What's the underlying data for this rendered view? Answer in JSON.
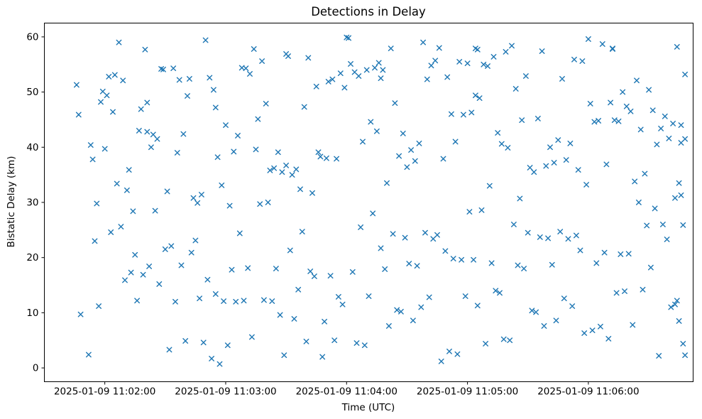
{
  "chart_data": {
    "type": "scatter",
    "title": "Detections in Delay",
    "xlabel": "Time (UTC)",
    "ylabel": "Bistatic Delay (km)",
    "marker": "x",
    "marker_color": "#1f77b4",
    "x_unit": "seconds relative to 2025-01-09 11:02:00 UTC",
    "xlim": [
      -30,
      292
    ],
    "ylim": [
      -2.5,
      62.5
    ],
    "x_ticks": [
      {
        "value": 0,
        "label": "2025-01-09 11:02:00"
      },
      {
        "value": 60,
        "label": "2025-01-09 11:03:00"
      },
      {
        "value": 120,
        "label": "2025-01-09 11:04:00"
      },
      {
        "value": 180,
        "label": "2025-01-09 11:05:00"
      },
      {
        "value": 240,
        "label": "2025-01-09 11:06:00"
      }
    ],
    "y_ticks": [
      0,
      10,
      20,
      30,
      40,
      50,
      60
    ],
    "points": [
      [
        -14,
        51.3
      ],
      [
        -13,
        45.9
      ],
      [
        -12,
        9.7
      ],
      [
        -8,
        2.4
      ],
      [
        -7,
        40.4
      ],
      [
        -6,
        37.8
      ],
      [
        -5,
        23.0
      ],
      [
        -4,
        29.8
      ],
      [
        -3,
        11.2
      ],
      [
        -2,
        48.2
      ],
      [
        -1,
        50.1
      ],
      [
        0,
        39.7
      ],
      [
        1,
        49.4
      ],
      [
        2,
        52.8
      ],
      [
        3,
        24.6
      ],
      [
        4,
        46.4
      ],
      [
        5,
        53.1
      ],
      [
        6,
        33.4
      ],
      [
        7,
        59.0
      ],
      [
        8,
        25.6
      ],
      [
        9,
        52.1
      ],
      [
        10,
        15.9
      ],
      [
        11,
        32.2
      ],
      [
        12,
        35.9
      ],
      [
        13,
        17.3
      ],
      [
        14,
        28.4
      ],
      [
        15,
        20.5
      ],
      [
        16,
        12.2
      ],
      [
        17,
        43.0
      ],
      [
        18,
        46.9
      ],
      [
        19,
        16.9
      ],
      [
        20,
        57.7
      ],
      [
        21,
        42.8
      ],
      [
        22,
        18.4
      ],
      [
        23,
        40.0
      ],
      [
        24,
        42.3
      ],
      [
        25,
        28.5
      ],
      [
        26,
        41.5
      ],
      [
        27,
        15.2
      ],
      [
        28,
        54.2
      ],
      [
        29,
        54.1
      ],
      [
        30,
        21.5
      ],
      [
        31,
        32.0
      ],
      [
        32,
        3.3
      ],
      [
        33,
        22.1
      ],
      [
        34,
        54.3
      ],
      [
        35,
        12.0
      ],
      [
        36,
        39.0
      ],
      [
        37,
        52.2
      ],
      [
        38,
        18.6
      ],
      [
        39,
        42.4
      ],
      [
        40,
        4.9
      ],
      [
        41,
        49.3
      ],
      [
        42,
        52.4
      ],
      [
        43,
        20.9
      ],
      [
        44,
        30.8
      ],
      [
        45,
        23.1
      ],
      [
        46,
        29.9
      ],
      [
        47,
        12.6
      ],
      [
        48,
        31.4
      ],
      [
        49,
        4.6
      ],
      [
        50,
        59.4
      ],
      [
        51,
        16.0
      ],
      [
        52,
        52.6
      ],
      [
        53,
        1.7
      ],
      [
        54,
        50.4
      ],
      [
        55,
        13.4
      ],
      [
        56,
        38.2
      ],
      [
        57,
        0.7
      ],
      [
        58,
        33.1
      ],
      [
        59,
        12.1
      ],
      [
        60,
        44.0
      ],
      [
        61,
        4.1
      ],
      [
        62,
        29.4
      ],
      [
        63,
        17.8
      ],
      [
        64,
        39.2
      ],
      [
        65,
        12.0
      ],
      [
        66,
        42.1
      ],
      [
        67,
        24.4
      ],
      [
        68,
        54.4
      ],
      [
        69,
        12.2
      ],
      [
        70,
        54.3
      ],
      [
        71,
        18.1
      ],
      [
        72,
        53.3
      ],
      [
        73,
        5.6
      ],
      [
        74,
        57.8
      ],
      [
        75,
        39.6
      ],
      [
        76,
        45.1
      ],
      [
        77,
        29.7
      ],
      [
        78,
        55.6
      ],
      [
        79,
        12.3
      ],
      [
        80,
        47.9
      ],
      [
        81,
        30.0
      ],
      [
        82,
        35.8
      ],
      [
        83,
        12.1
      ],
      [
        84,
        36.2
      ],
      [
        85,
        18.0
      ],
      [
        86,
        39.1
      ],
      [
        87,
        9.6
      ],
      [
        88,
        35.5
      ],
      [
        89,
        2.3
      ],
      [
        90,
        36.7
      ],
      [
        91,
        56.5
      ],
      [
        92,
        21.3
      ],
      [
        93,
        35.0
      ],
      [
        94,
        8.9
      ],
      [
        95,
        36.0
      ],
      [
        96,
        14.2
      ],
      [
        97,
        32.4
      ],
      [
        98,
        24.7
      ],
      [
        99,
        47.3
      ],
      [
        100,
        4.8
      ],
      [
        101,
        56.2
      ],
      [
        102,
        17.5
      ],
      [
        103,
        31.7
      ],
      [
        104,
        16.6
      ],
      [
        105,
        51.0
      ],
      [
        106,
        39.1
      ],
      [
        107,
        38.3
      ],
      [
        108,
        2.0
      ],
      [
        109,
        8.4
      ],
      [
        110,
        38.0
      ],
      [
        111,
        51.9
      ],
      [
        112,
        16.7
      ],
      [
        113,
        52.3
      ],
      [
        114,
        5.0
      ],
      [
        115,
        37.9
      ],
      [
        116,
        12.9
      ],
      [
        117,
        53.4
      ],
      [
        118,
        11.5
      ],
      [
        119,
        50.8
      ],
      [
        120,
        59.9
      ],
      [
        121,
        59.8
      ],
      [
        122,
        55.1
      ],
      [
        123,
        17.4
      ],
      [
        124,
        53.6
      ],
      [
        125,
        4.5
      ],
      [
        126,
        52.9
      ],
      [
        127,
        25.5
      ],
      [
        128,
        41.0
      ],
      [
        129,
        4.1
      ],
      [
        130,
        54.0
      ],
      [
        131,
        13.0
      ],
      [
        132,
        44.6
      ],
      [
        133,
        28.0
      ],
      [
        134,
        54.4
      ],
      [
        135,
        42.9
      ],
      [
        136,
        55.3
      ],
      [
        137,
        21.7
      ],
      [
        138,
        54.0
      ],
      [
        139,
        17.9
      ],
      [
        140,
        33.5
      ],
      [
        141,
        7.6
      ],
      [
        142,
        57.9
      ],
      [
        143,
        24.3
      ],
      [
        144,
        48.0
      ],
      [
        145,
        10.5
      ],
      [
        146,
        38.4
      ],
      [
        147,
        10.2
      ],
      [
        148,
        42.5
      ],
      [
        149,
        23.6
      ],
      [
        150,
        36.4
      ],
      [
        151,
        18.9
      ],
      [
        152,
        39.5
      ],
      [
        153,
        8.6
      ],
      [
        154,
        37.5
      ],
      [
        155,
        18.5
      ],
      [
        156,
        40.7
      ],
      [
        157,
        11.0
      ],
      [
        158,
        59.0
      ],
      [
        159,
        24.5
      ],
      [
        160,
        52.3
      ],
      [
        161,
        12.8
      ],
      [
        162,
        54.8
      ],
      [
        163,
        23.4
      ],
      [
        164,
        55.7
      ],
      [
        165,
        24.1
      ],
      [
        166,
        58.0
      ],
      [
        167,
        1.2
      ],
      [
        168,
        37.9
      ],
      [
        169,
        21.2
      ],
      [
        170,
        52.7
      ],
      [
        171,
        3.0
      ],
      [
        172,
        46.0
      ],
      [
        173,
        19.8
      ],
      [
        174,
        41.0
      ],
      [
        175,
        2.5
      ],
      [
        176,
        55.5
      ],
      [
        177,
        19.6
      ],
      [
        178,
        45.9
      ],
      [
        179,
        13.0
      ],
      [
        180,
        55.2
      ],
      [
        181,
        28.3
      ],
      [
        182,
        46.3
      ],
      [
        183,
        19.6
      ],
      [
        184,
        49.4
      ],
      [
        185,
        11.3
      ],
      [
        186,
        48.9
      ],
      [
        187,
        28.6
      ],
      [
        188,
        55.0
      ],
      [
        189,
        4.4
      ],
      [
        190,
        54.7
      ],
      [
        191,
        33.0
      ],
      [
        192,
        19.0
      ],
      [
        193,
        56.4
      ],
      [
        194,
        14.0
      ],
      [
        195,
        42.6
      ],
      [
        196,
        13.6
      ],
      [
        197,
        40.6
      ],
      [
        198,
        5.2
      ],
      [
        199,
        57.3
      ],
      [
        200,
        39.9
      ],
      [
        201,
        5.0
      ],
      [
        202,
        58.4
      ],
      [
        203,
        26.0
      ],
      [
        204,
        50.6
      ],
      [
        205,
        18.6
      ],
      [
        206,
        30.7
      ],
      [
        207,
        44.9
      ],
      [
        208,
        18.0
      ],
      [
        209,
        52.9
      ],
      [
        210,
        24.5
      ],
      [
        211,
        36.3
      ],
      [
        212,
        10.4
      ],
      [
        213,
        35.5
      ],
      [
        214,
        10.1
      ],
      [
        215,
        45.2
      ],
      [
        216,
        23.7
      ],
      [
        217,
        57.4
      ],
      [
        218,
        7.6
      ],
      [
        219,
        36.6
      ],
      [
        220,
        23.5
      ],
      [
        221,
        40.0
      ],
      [
        222,
        18.7
      ],
      [
        223,
        37.2
      ],
      [
        224,
        8.6
      ],
      [
        225,
        41.3
      ],
      [
        226,
        24.7
      ],
      [
        227,
        52.4
      ],
      [
        228,
        12.6
      ],
      [
        229,
        37.7
      ],
      [
        230,
        23.4
      ],
      [
        231,
        40.7
      ],
      [
        232,
        11.2
      ],
      [
        233,
        55.9
      ],
      [
        234,
        24.0
      ],
      [
        235,
        35.9
      ],
      [
        236,
        21.3
      ],
      [
        237,
        55.6
      ],
      [
        238,
        6.3
      ],
      [
        239,
        33.2
      ],
      [
        240,
        59.6
      ],
      [
        241,
        47.9
      ],
      [
        242,
        6.8
      ],
      [
        243,
        44.6
      ],
      [
        244,
        19.0
      ],
      [
        245,
        44.8
      ],
      [
        246,
        7.5
      ],
      [
        247,
        58.7
      ],
      [
        248,
        20.9
      ],
      [
        249,
        36.9
      ],
      [
        250,
        5.3
      ],
      [
        251,
        48.1
      ],
      [
        252,
        57.9
      ],
      [
        253,
        44.9
      ],
      [
        254,
        13.6
      ],
      [
        255,
        44.7
      ],
      [
        256,
        20.6
      ],
      [
        257,
        50.0
      ],
      [
        258,
        13.9
      ],
      [
        259,
        47.4
      ],
      [
        260,
        20.7
      ],
      [
        261,
        46.5
      ],
      [
        262,
        7.8
      ],
      [
        263,
        33.8
      ],
      [
        264,
        52.1
      ],
      [
        265,
        30.0
      ],
      [
        266,
        43.2
      ],
      [
        267,
        14.2
      ],
      [
        268,
        35.2
      ],
      [
        269,
        25.8
      ],
      [
        270,
        50.4
      ],
      [
        271,
        18.2
      ],
      [
        272,
        46.7
      ],
      [
        273,
        28.9
      ],
      [
        274,
        40.5
      ],
      [
        275,
        2.2
      ],
      [
        276,
        43.4
      ],
      [
        277,
        26.0
      ],
      [
        278,
        45.6
      ],
      [
        279,
        23.3
      ],
      [
        280,
        41.6
      ],
      [
        281,
        11.0
      ],
      [
        282,
        44.3
      ],
      [
        283,
        11.5
      ],
      [
        284,
        58.2
      ],
      [
        285,
        33.5
      ],
      [
        286,
        40.8
      ],
      [
        287,
        25.9
      ],
      [
        288,
        53.2
      ],
      [
        21,
        48.1
      ],
      [
        55,
        47.2
      ],
      [
        90,
        56.9
      ],
      [
        137,
        52.5
      ],
      [
        184,
        57.9
      ],
      [
        185,
        57.7
      ],
      [
        252,
        57.8
      ],
      [
        283,
        30.8
      ],
      [
        284,
        12.2
      ],
      [
        285,
        8.5
      ],
      [
        286,
        44.0
      ],
      [
        286,
        31.3
      ],
      [
        287,
        4.4
      ],
      [
        288,
        41.5
      ],
      [
        288,
        2.3
      ]
    ]
  }
}
